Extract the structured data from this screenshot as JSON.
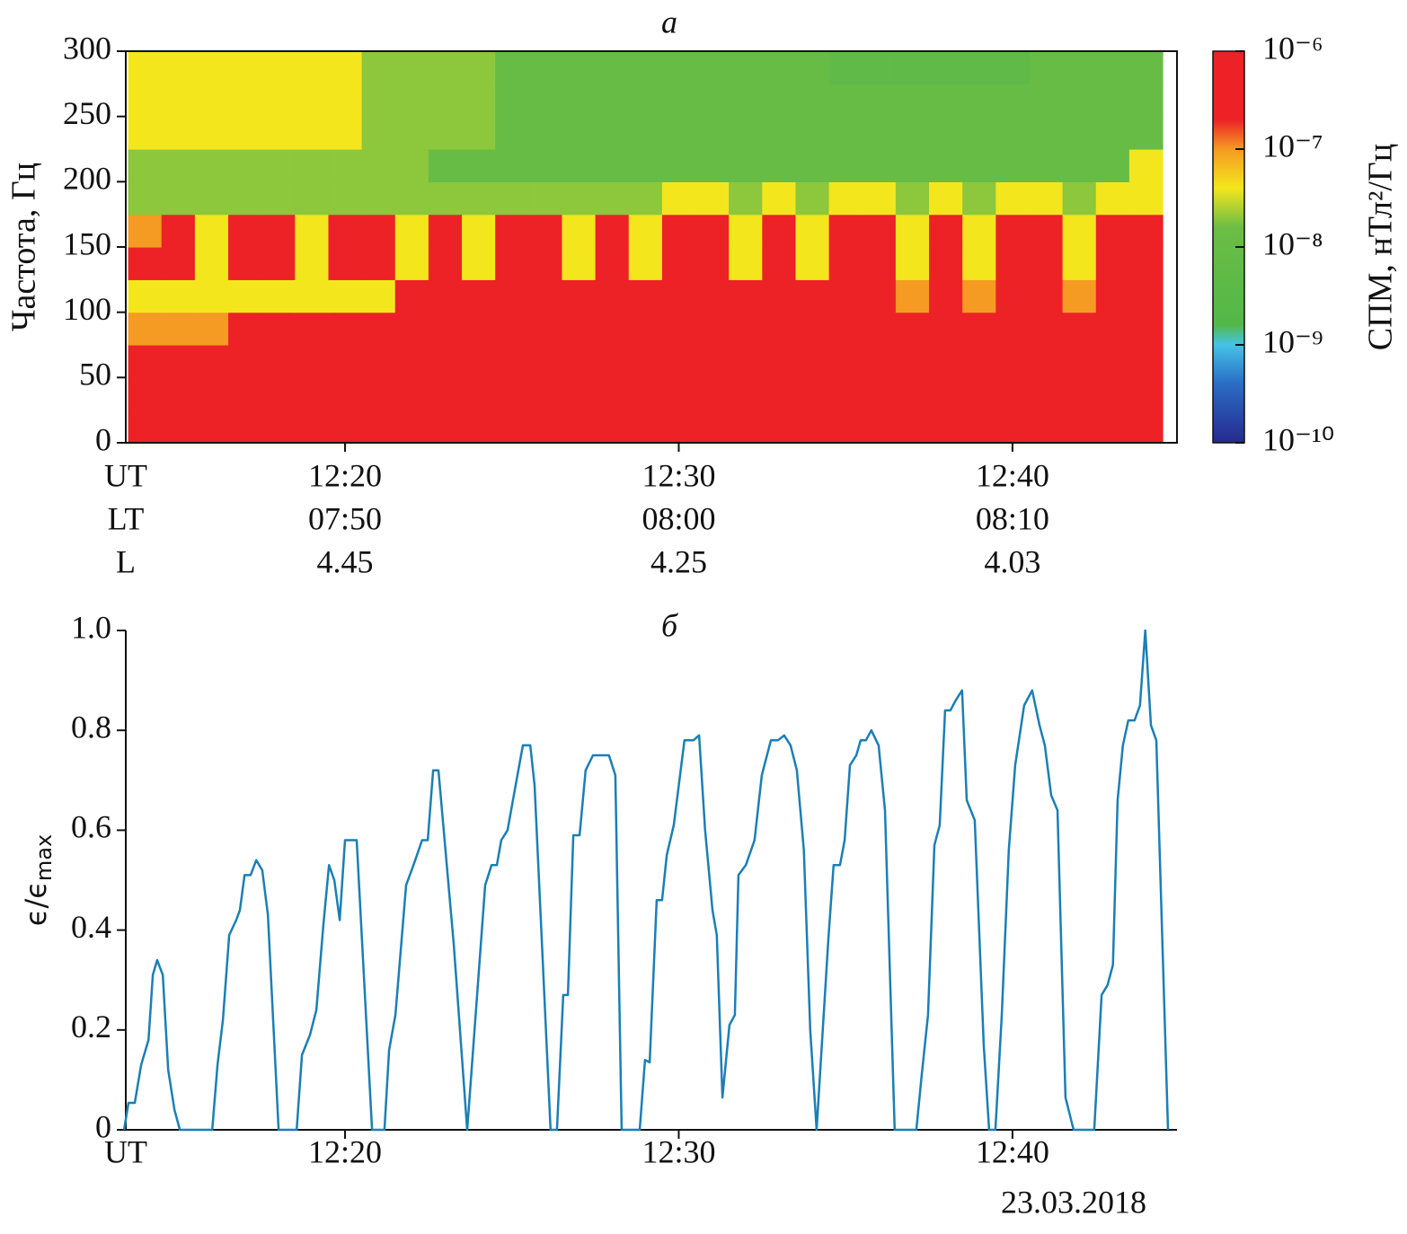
{
  "chart_data": [
    {
      "type": "heatmap",
      "title": "а",
      "ylabel": "Частота, Гц",
      "xlim": [
        13.43,
        44.93
      ],
      "ylim": [
        0,
        300
      ],
      "xticks": [
        {
          "value": 20,
          "label": "12:20"
        },
        {
          "value": 30,
          "label": "12:30"
        },
        {
          "value": 40,
          "label": "12:40"
        }
      ],
      "xticks_row_label": "UT",
      "extra_rows": [
        {
          "name": "LT",
          "labels": [
            "07:50",
            "08:00",
            "08:10"
          ]
        },
        {
          "name": "L",
          "labels": [
            4.45,
            4.25,
            4.03
          ]
        }
      ],
      "yticks": [
        0,
        50,
        100,
        150,
        200,
        250,
        300
      ],
      "x": [
        14,
        15,
        16,
        17,
        18,
        19,
        20,
        21,
        22,
        23,
        24,
        25,
        26,
        27,
        28,
        29,
        30,
        31,
        32,
        33,
        34,
        35,
        36,
        37,
        38,
        39,
        40,
        41,
        42,
        43,
        44
      ],
      "y": [
        12.5,
        37.5,
        62.5,
        87.5,
        112.5,
        137.5,
        162.5,
        187.5,
        212.5,
        237.5,
        262.5,
        287.5
      ],
      "z": [
        [
          1e-06,
          1e-06,
          1e-06,
          1e-06,
          1e-06,
          1e-06,
          1e-06,
          1e-06,
          1e-06,
          1e-06,
          1e-06,
          1e-06,
          1e-06,
          1e-06,
          1e-06,
          1e-06,
          1e-06,
          1e-06,
          1e-06,
          1e-06,
          1e-06,
          1e-06,
          1e-06,
          1e-06,
          1e-06,
          1e-06,
          1e-06,
          1e-06,
          1e-06,
          1e-06,
          1e-06
        ],
        [
          1e-06,
          1e-06,
          1e-06,
          1e-06,
          1e-06,
          1e-06,
          1e-06,
          1e-06,
          1e-06,
          1e-06,
          1e-06,
          1e-06,
          1e-06,
          1e-06,
          1e-06,
          1e-06,
          1e-06,
          1e-06,
          1e-06,
          1e-06,
          1e-06,
          1e-06,
          1e-06,
          1e-06,
          1e-06,
          1e-06,
          1e-06,
          1e-06,
          1e-06,
          1e-06,
          1e-06
        ],
        [
          1e-06,
          1e-06,
          1e-06,
          1e-06,
          1e-06,
          1e-06,
          1e-06,
          1e-06,
          1e-06,
          1e-06,
          1e-06,
          1e-06,
          1e-06,
          1e-06,
          1e-06,
          1e-06,
          1e-06,
          1e-06,
          1e-06,
          1e-06,
          1e-06,
          1e-06,
          1e-06,
          1e-06,
          1e-06,
          1e-06,
          1e-06,
          1e-06,
          1e-06,
          1e-06,
          1e-06
        ],
        [
          1e-07,
          1e-07,
          1e-07,
          1e-06,
          1e-06,
          1e-06,
          1e-06,
          1e-06,
          1e-06,
          1e-06,
          1e-06,
          1e-06,
          1e-06,
          1e-06,
          1e-06,
          1e-06,
          1e-06,
          1e-06,
          1e-06,
          1e-06,
          1e-06,
          1e-06,
          1e-06,
          1e-06,
          1e-06,
          1e-06,
          1e-06,
          1e-06,
          1e-06,
          1e-06,
          1e-06
        ],
        [
          4e-08,
          4e-08,
          4e-08,
          4e-08,
          4e-08,
          4e-08,
          4e-08,
          4e-08,
          1e-06,
          1e-06,
          1e-06,
          1e-06,
          1e-06,
          1e-06,
          1e-06,
          1e-06,
          1e-06,
          1e-06,
          1e-06,
          1e-06,
          1e-06,
          1e-06,
          1e-06,
          1e-07,
          1e-06,
          1e-07,
          1e-06,
          1e-06,
          1e-07,
          1e-06,
          1e-06
        ],
        [
          1e-06,
          1e-06,
          4e-08,
          1e-06,
          1e-06,
          4e-08,
          1e-06,
          1e-06,
          4e-08,
          1e-06,
          4e-08,
          1e-06,
          1e-06,
          4e-08,
          1e-06,
          4e-08,
          1e-06,
          1e-06,
          4e-08,
          1e-06,
          4e-08,
          1e-06,
          1e-06,
          4e-08,
          1e-06,
          4e-08,
          1e-06,
          1e-06,
          4e-08,
          1e-06,
          1e-06
        ],
        [
          1e-07,
          1e-06,
          4e-08,
          1e-06,
          1e-06,
          4e-08,
          1e-06,
          1e-06,
          4e-08,
          1e-06,
          4e-08,
          1e-06,
          1e-06,
          4e-08,
          1e-06,
          4e-08,
          1e-06,
          1e-06,
          4e-08,
          1e-06,
          4e-08,
          1e-06,
          1e-06,
          4e-08,
          1e-06,
          4e-08,
          1e-06,
          1e-06,
          4e-08,
          1e-06,
          1e-06
        ],
        [
          2e-08,
          2e-08,
          2e-08,
          2e-08,
          2e-08,
          2e-08,
          2e-08,
          2e-08,
          2e-08,
          2e-08,
          2e-08,
          2e-08,
          2e-08,
          2e-08,
          2e-08,
          2e-08,
          4e-08,
          4e-08,
          2e-08,
          4e-08,
          2e-08,
          4e-08,
          4e-08,
          2e-08,
          4e-08,
          2e-08,
          4e-08,
          4e-08,
          2e-08,
          4e-08,
          4e-08
        ],
        [
          2e-08,
          2e-08,
          2e-08,
          2e-08,
          2e-08,
          2e-08,
          2e-08,
          2e-08,
          2e-08,
          1e-08,
          1e-08,
          1e-08,
          1e-08,
          1e-08,
          1e-08,
          1e-08,
          1e-08,
          1e-08,
          1e-08,
          1e-08,
          1e-08,
          1e-08,
          1e-08,
          1e-08,
          1e-08,
          1e-08,
          1e-08,
          1e-08,
          1e-08,
          1e-08,
          4e-08
        ],
        [
          4e-08,
          4e-08,
          4e-08,
          4e-08,
          4e-08,
          4e-08,
          4e-08,
          2e-08,
          2e-08,
          2e-08,
          2e-08,
          1e-08,
          1e-08,
          1e-08,
          1e-08,
          1e-08,
          1e-08,
          1e-08,
          1e-08,
          1e-08,
          1e-08,
          1e-08,
          1e-08,
          1e-08,
          1e-08,
          1e-08,
          1e-08,
          1e-08,
          1e-08,
          1e-08,
          1e-08
        ],
        [
          4e-08,
          4e-08,
          4e-08,
          4e-08,
          4e-08,
          4e-08,
          4e-08,
          2e-08,
          2e-08,
          2e-08,
          2e-08,
          1e-08,
          1e-08,
          1e-08,
          1e-08,
          1e-08,
          1e-08,
          1e-08,
          1e-08,
          1e-08,
          1e-08,
          1e-08,
          1e-08,
          1e-08,
          1e-08,
          1e-08,
          1e-08,
          1e-08,
          1e-08,
          1e-08,
          1e-08
        ],
        [
          4e-08,
          4e-08,
          4e-08,
          4e-08,
          4e-08,
          4e-08,
          4e-08,
          2e-08,
          2e-08,
          2e-08,
          2e-08,
          1e-08,
          1e-08,
          1e-08,
          1e-08,
          1e-08,
          1e-08,
          1e-08,
          1e-08,
          1e-08,
          1e-08,
          5e-09,
          5e-09,
          5e-09,
          5e-09,
          5e-09,
          5e-09,
          1e-08,
          1e-08,
          1e-08,
          1e-08
        ]
      ],
      "colorbar": {
        "label": "СПМ, нТл²/Гц",
        "log": true,
        "lim": [
          1e-10,
          1e-06
        ],
        "ticks": [
          {
            "value": 1e-06,
            "label": "10⁻⁶"
          },
          {
            "value": 1e-07,
            "label": "10⁻⁷"
          },
          {
            "value": 1e-08,
            "label": "10⁻⁸"
          },
          {
            "value": 1e-09,
            "label": "10⁻⁹"
          },
          {
            "value": 1e-10,
            "label": "10⁻¹⁰"
          }
        ],
        "colorscale": [
          {
            "value": 1e-10,
            "color": "#262a8e"
          },
          {
            "value": 4e-10,
            "color": "#2a6cc4"
          },
          {
            "value": 1e-09,
            "color": "#45c3e8"
          },
          {
            "value": 1.6e-09,
            "color": "#52b848"
          },
          {
            "value": 1.6e-08,
            "color": "#6cbd45"
          },
          {
            "value": 4e-08,
            "color": "#f4e61c"
          },
          {
            "value": 1e-07,
            "color": "#f59a23"
          },
          {
            "value": 2e-07,
            "color": "#ec2227"
          },
          {
            "value": 1e-06,
            "color": "#ec2227"
          }
        ]
      }
    },
    {
      "type": "line",
      "title": "б",
      "ylabel": "ϵ/ϵ",
      "ylabel_sub": "max",
      "xlim": [
        13.43,
        44.93
      ],
      "ylim": [
        0,
        1
      ],
      "xticks": [
        {
          "value": 20,
          "label": "12:20"
        },
        {
          "value": 30,
          "label": "12:30"
        },
        {
          "value": 40,
          "label": "12:40"
        }
      ],
      "xticks_row_label": "UT",
      "yticks": [
        0,
        0.2,
        0.4,
        0.6,
        0.8,
        {
          "value": 1,
          "label": "1.0"
        }
      ],
      "annotation": "23.03.2018",
      "color": "#1a7fb5",
      "x": [
        13.38,
        13.51,
        13.7,
        13.89,
        14.11,
        14.24,
        14.37,
        14.54,
        14.7,
        14.89,
        15.05,
        16.02,
        16.18,
        16.34,
        16.53,
        16.74,
        16.85,
        16.99,
        17.17,
        17.34,
        17.52,
        17.69,
        18.01,
        18.55,
        18.71,
        18.95,
        19.14,
        19.35,
        19.52,
        19.68,
        19.84,
        20.0,
        20.35,
        20.81,
        21.18,
        21.32,
        21.51,
        21.83,
        22.05,
        22.31,
        22.48,
        22.64,
        22.8,
        23.26,
        23.66,
        24.2,
        24.39,
        24.55,
        24.68,
        24.87,
        25.14,
        25.33,
        25.55,
        25.68,
        26.16,
        26.35,
        26.54,
        26.68,
        26.84,
        27.03,
        27.21,
        27.43,
        27.91,
        28.1,
        28.29,
        28.83,
        28.99,
        29.13,
        29.34,
        29.5,
        29.64,
        29.85,
        30.17,
        30.44,
        30.61,
        30.79,
        31.01,
        31.14,
        31.31,
        31.52,
        31.68,
        31.79,
        32.01,
        32.27,
        32.49,
        32.76,
        32.97,
        33.16,
        33.35,
        33.54,
        33.75,
        33.94,
        34.13,
        34.48,
        34.64,
        34.83,
        34.97,
        35.13,
        35.32,
        35.45,
        35.61,
        35.77,
        35.99,
        36.18,
        36.47,
        37.12,
        37.28,
        37.47,
        37.66,
        37.82,
        37.98,
        38.14,
        38.3,
        38.49,
        38.63,
        38.87,
        39.14,
        39.3,
        39.49,
        39.68,
        39.89,
        40.08,
        40.35,
        40.59,
        40.81,
        40.97,
        41.16,
        41.35,
        41.59,
        41.83,
        42.45,
        42.67,
        42.85,
        43.01,
        43.15,
        43.31,
        43.47,
        43.66,
        43.82,
        43.98,
        44.15,
        44.31,
        44.66
      ],
      "values": [
        0,
        0.054,
        0.054,
        0.13,
        0.18,
        0.31,
        0.34,
        0.31,
        0.12,
        0.04,
        0,
        0,
        0.13,
        0.22,
        0.39,
        0.42,
        0.44,
        0.51,
        0.51,
        0.54,
        0.52,
        0.43,
        0,
        0,
        0.15,
        0.19,
        0.24,
        0.41,
        0.53,
        0.5,
        0.42,
        0.58,
        0.58,
        0,
        0,
        0.16,
        0.23,
        0.49,
        0.53,
        0.58,
        0.58,
        0.72,
        0.72,
        0.37,
        0,
        0.49,
        0.53,
        0.53,
        0.58,
        0.6,
        0.7,
        0.77,
        0.77,
        0.69,
        0,
        0,
        0.27,
        0.27,
        0.59,
        0.59,
        0.72,
        0.75,
        0.75,
        0.71,
        0,
        0,
        0.14,
        0.135,
        0.46,
        0.46,
        0.55,
        0.61,
        0.78,
        0.78,
        0.79,
        0.6,
        0.44,
        0.39,
        0.065,
        0.21,
        0.23,
        0.51,
        0.53,
        0.58,
        0.71,
        0.78,
        0.78,
        0.79,
        0.77,
        0.72,
        0.56,
        0.2,
        0,
        0.38,
        0.53,
        0.53,
        0.58,
        0.73,
        0.75,
        0.78,
        0.78,
        0.8,
        0.77,
        0.64,
        0,
        0,
        0.11,
        0.23,
        0.57,
        0.61,
        0.84,
        0.84,
        0.86,
        0.88,
        0.66,
        0.62,
        0.17,
        0,
        0,
        0.23,
        0.56,
        0.73,
        0.85,
        0.88,
        0.81,
        0.77,
        0.67,
        0.64,
        0.065,
        0,
        0,
        0.27,
        0.29,
        0.33,
        0.66,
        0.77,
        0.82,
        0.82,
        0.85,
        1.0,
        0.81,
        0.78,
        0
      ]
    }
  ]
}
